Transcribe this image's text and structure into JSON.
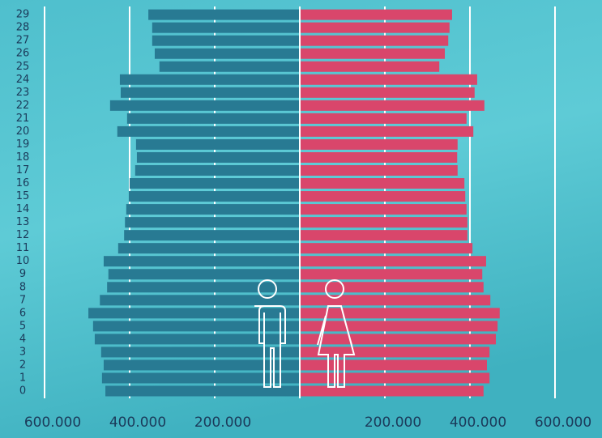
{
  "chart_data": {
    "type": "pyramid",
    "categories": [
      "0",
      "1",
      "2",
      "3",
      "4",
      "5",
      "6",
      "7",
      "8",
      "9",
      "10",
      "11",
      "12",
      "13",
      "14",
      "15",
      "16",
      "17",
      "18",
      "19",
      "20",
      "21",
      "22",
      "23",
      "24",
      "25",
      "26",
      "27",
      "28",
      "29"
    ],
    "series": [
      {
        "color": "#287a93",
        "side": "left",
        "values": [
          457000,
          465000,
          461000,
          467000,
          482000,
          486000,
          497000,
          470000,
          453000,
          450000,
          461000,
          427000,
          413000,
          411000,
          408000,
          402000,
          400000,
          387000,
          383000,
          385000,
          429000,
          406000,
          446000,
          421000,
          423000,
          330000,
          341000,
          347000,
          347000,
          356000
        ]
      },
      {
        "color": "#d9466b",
        "side": "right",
        "values": [
          432000,
          446000,
          440000,
          446000,
          461000,
          465000,
          470000,
          448000,
          432000,
          429000,
          438000,
          406000,
          394000,
          394000,
          392000,
          389000,
          387000,
          371000,
          370000,
          371000,
          408000,
          392000,
          434000,
          411000,
          417000,
          328000,
          341000,
          349000,
          352000,
          358000
        ]
      }
    ],
    "xlim": [
      -600000,
      600000
    ],
    "xticks": [
      {
        "value": -600000,
        "label": "600.000"
      },
      {
        "value": -400000,
        "label": "400.000"
      },
      {
        "value": -200000,
        "label": "200.000"
      },
      {
        "value": 200000,
        "label": "200.000"
      },
      {
        "value": 400000,
        "label": "400.000"
      },
      {
        "value": 600000,
        "label": "600.000"
      }
    ],
    "grid": true
  }
}
